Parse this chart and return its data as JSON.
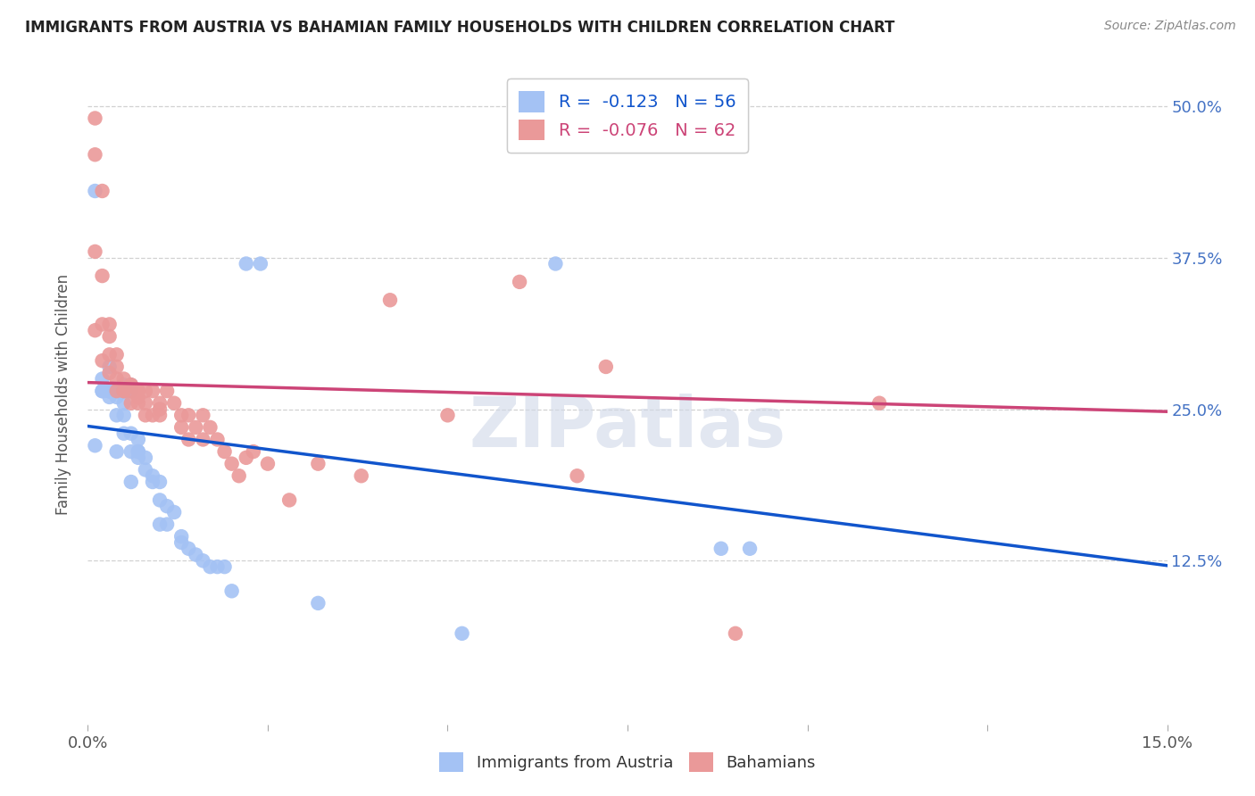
{
  "title": "IMMIGRANTS FROM AUSTRIA VS BAHAMIAN FAMILY HOUSEHOLDS WITH CHILDREN CORRELATION CHART",
  "source": "Source: ZipAtlas.com",
  "legend_austria": "R =  -0.123   N = 56",
  "legend_bahamian": "R =  -0.076   N = 62",
  "legend_label_austria": "Immigrants from Austria",
  "legend_label_bahamian": "Bahamians",
  "xlim": [
    0.0,
    0.15
  ],
  "ylim": [
    -0.01,
    0.535
  ],
  "austria_color": "#a4c2f4",
  "bahamian_color": "#ea9999",
  "austria_line_color": "#1155cc",
  "bahamian_line_color": "#cc4477",
  "watermark": "ZIPatlas",
  "austria_scatter_x": [
    0.001,
    0.002,
    0.001,
    0.002,
    0.003,
    0.002,
    0.003,
    0.003,
    0.004,
    0.003,
    0.004,
    0.004,
    0.004,
    0.003,
    0.005,
    0.005,
    0.005,
    0.005,
    0.006,
    0.006,
    0.004,
    0.005,
    0.005,
    0.006,
    0.007,
    0.006,
    0.007,
    0.007,
    0.007,
    0.008,
    0.008,
    0.006,
    0.009,
    0.009,
    0.01,
    0.01,
    0.01,
    0.011,
    0.011,
    0.012,
    0.013,
    0.013,
    0.014,
    0.015,
    0.016,
    0.017,
    0.018,
    0.019,
    0.02,
    0.022,
    0.024,
    0.032,
    0.052,
    0.065,
    0.088,
    0.092
  ],
  "austria_scatter_y": [
    0.43,
    0.265,
    0.22,
    0.275,
    0.26,
    0.265,
    0.285,
    0.265,
    0.265,
    0.265,
    0.265,
    0.26,
    0.245,
    0.265,
    0.245,
    0.27,
    0.265,
    0.265,
    0.265,
    0.27,
    0.215,
    0.255,
    0.23,
    0.23,
    0.215,
    0.215,
    0.215,
    0.225,
    0.21,
    0.21,
    0.2,
    0.19,
    0.195,
    0.19,
    0.19,
    0.175,
    0.155,
    0.155,
    0.17,
    0.165,
    0.145,
    0.14,
    0.135,
    0.13,
    0.125,
    0.12,
    0.12,
    0.12,
    0.1,
    0.37,
    0.37,
    0.09,
    0.065,
    0.37,
    0.135,
    0.135
  ],
  "bahamian_scatter_x": [
    0.001,
    0.001,
    0.001,
    0.001,
    0.002,
    0.002,
    0.002,
    0.002,
    0.003,
    0.003,
    0.003,
    0.003,
    0.004,
    0.004,
    0.004,
    0.004,
    0.005,
    0.005,
    0.005,
    0.006,
    0.006,
    0.006,
    0.006,
    0.007,
    0.007,
    0.007,
    0.007,
    0.008,
    0.008,
    0.008,
    0.009,
    0.009,
    0.01,
    0.01,
    0.01,
    0.011,
    0.012,
    0.013,
    0.013,
    0.014,
    0.014,
    0.015,
    0.016,
    0.016,
    0.017,
    0.018,
    0.019,
    0.02,
    0.021,
    0.022,
    0.023,
    0.025,
    0.028,
    0.032,
    0.038,
    0.042,
    0.05,
    0.06,
    0.068,
    0.072,
    0.09,
    0.11
  ],
  "bahamian_scatter_y": [
    0.49,
    0.46,
    0.38,
    0.315,
    0.43,
    0.36,
    0.32,
    0.29,
    0.32,
    0.31,
    0.295,
    0.28,
    0.295,
    0.285,
    0.275,
    0.265,
    0.275,
    0.265,
    0.265,
    0.27,
    0.27,
    0.265,
    0.255,
    0.265,
    0.265,
    0.26,
    0.255,
    0.265,
    0.255,
    0.245,
    0.265,
    0.245,
    0.255,
    0.25,
    0.245,
    0.265,
    0.255,
    0.245,
    0.235,
    0.245,
    0.225,
    0.235,
    0.245,
    0.225,
    0.235,
    0.225,
    0.215,
    0.205,
    0.195,
    0.21,
    0.215,
    0.205,
    0.175,
    0.205,
    0.195,
    0.34,
    0.245,
    0.355,
    0.195,
    0.285,
    0.065,
    0.255
  ],
  "austria_line_x": [
    0.0,
    0.15
  ],
  "austria_line_y": [
    0.236,
    0.121
  ],
  "bahamian_line_x": [
    0.0,
    0.15
  ],
  "bahamian_line_y": [
    0.272,
    0.248
  ],
  "ytick_positions": [
    0.125,
    0.25,
    0.375,
    0.5
  ],
  "ytick_labels": [
    "12.5%",
    "25.0%",
    "37.5%",
    "50.0%"
  ],
  "xtick_positions": [
    0.0,
    0.025,
    0.05,
    0.075,
    0.1,
    0.125,
    0.15
  ],
  "xtick_labels": [
    "0.0%",
    "",
    "",
    "",
    "",
    "",
    "15.0%"
  ],
  "ylabel": "Family Households with Children",
  "background_color": "#ffffff",
  "grid_color": "#cccccc"
}
